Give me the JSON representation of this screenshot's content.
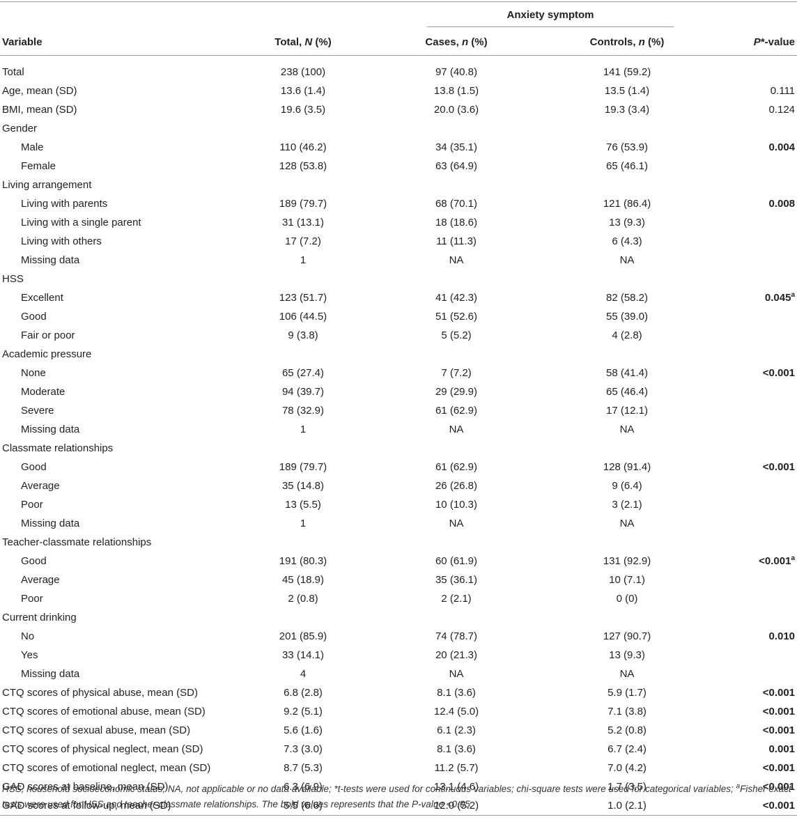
{
  "header": {
    "group": "Anxiety symptom",
    "variable": "Variable",
    "total": [
      "Total, ",
      "N",
      " (%)"
    ],
    "cases": [
      "Cases, ",
      "n",
      " (%)"
    ],
    "controls": [
      "Controls, ",
      "n",
      " (%)"
    ],
    "p": [
      "P",
      "*-value"
    ]
  },
  "rows": [
    {
      "cells": [
        "Total",
        "238 (100)",
        "97 (40.8)",
        "141 (59.2)"
      ]
    },
    {
      "cells": [
        "Age, mean (SD)",
        "13.6 (1.4)",
        "13.8 (1.5)",
        "13.5 (1.4)",
        "0.111"
      ]
    },
    {
      "cells": [
        "BMI, mean (SD)",
        "19.6 (3.5)",
        "20.0 (3.6)",
        "19.3 (3.4)",
        "0.124"
      ]
    },
    {
      "cells": [
        "Gender"
      ]
    },
    {
      "cells": [
        "Male",
        "110 (46.2)",
        "34 (35.1)",
        "76 (53.9)",
        "0.004"
      ],
      "indent": true,
      "bold": true
    },
    {
      "cells": [
        "Female",
        "128 (53.8)",
        "63 (64.9)",
        "65 (46.1)"
      ],
      "indent": true
    },
    {
      "cells": [
        "Living arrangement"
      ]
    },
    {
      "cells": [
        "Living with parents",
        "189 (79.7)",
        "68 (70.1)",
        "121 (86.4)",
        "0.008"
      ],
      "indent": true,
      "bold": true
    },
    {
      "cells": [
        "Living with a single parent",
        "31 (13.1)",
        "18 (18.6)",
        "13 (9.3)"
      ],
      "indent": true
    },
    {
      "cells": [
        "Living with others",
        "17 (7.2)",
        "11 (11.3)",
        "6 (4.3)"
      ],
      "indent": true
    },
    {
      "cells": [
        "Missing data",
        "1",
        "NA",
        "NA"
      ],
      "indent": true
    },
    {
      "cells": [
        "HSS"
      ]
    },
    {
      "cells": [
        "Excellent",
        "123 (51.7)",
        "41 (42.3)",
        "82 (58.2)",
        "0.045"
      ],
      "indent": true,
      "bold": true,
      "sup": "a"
    },
    {
      "cells": [
        "Good",
        "106 (44.5)",
        "51 (52.6)",
        "55 (39.0)"
      ],
      "indent": true
    },
    {
      "cells": [
        "Fair or poor",
        "9 (3.8)",
        "5 (5.2)",
        "4 (2.8)"
      ],
      "indent": true
    },
    {
      "cells": [
        "Academic pressure"
      ]
    },
    {
      "cells": [
        "None",
        "65 (27.4)",
        "7 (7.2)",
        "58 (41.4)",
        "<0.001"
      ],
      "indent": true,
      "bold": true
    },
    {
      "cells": [
        "Moderate",
        "94 (39.7)",
        "29 (29.9)",
        "65 (46.4)"
      ],
      "indent": true
    },
    {
      "cells": [
        "Severe",
        "78 (32.9)",
        "61 (62.9)",
        "17 (12.1)"
      ],
      "indent": true
    },
    {
      "cells": [
        "Missing data",
        "1",
        "NA",
        "NA"
      ],
      "indent": true
    },
    {
      "cells": [
        "Classmate relationships"
      ]
    },
    {
      "cells": [
        "Good",
        "189 (79.7)",
        "61 (62.9)",
        "128 (91.4)",
        "<0.001"
      ],
      "indent": true,
      "bold": true
    },
    {
      "cells": [
        "Average",
        "35 (14.8)",
        "26 (26.8)",
        "9 (6.4)"
      ],
      "indent": true
    },
    {
      "cells": [
        "Poor",
        "13 (5.5)",
        "10 (10.3)",
        "3 (2.1)"
      ],
      "indent": true
    },
    {
      "cells": [
        "Missing data",
        "1",
        "NA",
        "NA"
      ],
      "indent": true
    },
    {
      "cells": [
        "Teacher-classmate relationships"
      ]
    },
    {
      "cells": [
        "Good",
        "191 (80.3)",
        "60 (61.9)",
        "131 (92.9)",
        "<0.001"
      ],
      "indent": true,
      "bold": true,
      "sup": "a"
    },
    {
      "cells": [
        "Average",
        "45 (18.9)",
        "35 (36.1)",
        "10 (7.1)"
      ],
      "indent": true
    },
    {
      "cells": [
        "Poor",
        "2 (0.8)",
        "2 (2.1)",
        "0 (0)"
      ],
      "indent": true
    },
    {
      "cells": [
        "Current drinking"
      ]
    },
    {
      "cells": [
        "No",
        "201 (85.9)",
        "74 (78.7)",
        "127 (90.7)",
        "0.010"
      ],
      "indent": true,
      "bold": true
    },
    {
      "cells": [
        "Yes",
        "33 (14.1)",
        "20 (21.3)",
        "13 (9.3)"
      ],
      "indent": true
    },
    {
      "cells": [
        "Missing data",
        "4",
        "NA",
        "NA"
      ],
      "indent": true
    },
    {
      "cells": [
        "CTQ scores of physical abuse, mean (SD)",
        "6.8 (2.8)",
        "8.1 (3.6)",
        "5.9 (1.7)",
        "<0.001"
      ],
      "bold": true
    },
    {
      "cells": [
        "CTQ scores of emotional abuse, mean (SD)",
        "9.2 (5.1)",
        "12.4 (5.0)",
        "7.1 (3.8)",
        "<0.001"
      ],
      "bold": true
    },
    {
      "cells": [
        "CTQ scores of sexual abuse, mean (SD)",
        "5.6 (1.6)",
        "6.1 (2.3)",
        "5.2 (0.8)",
        "<0.001"
      ],
      "bold": true
    },
    {
      "cells": [
        "CTQ scores of physical neglect, mean (SD)",
        "7.3 (3.0)",
        "8.1 (3.6)",
        "6.7 (2.4)",
        "0.001"
      ],
      "bold": true
    },
    {
      "cells": [
        "CTQ scores of emotional neglect, mean (SD)",
        "8.7 (5.3)",
        "11.2 (5.7)",
        "7.0 (4.2)",
        "<0.001"
      ],
      "bold": true
    },
    {
      "cells": [
        "GAD scores at baseline, mean (SD)",
        "6.3 (6.9)",
        "13.1 (4.6)",
        "1.7 (3.5)",
        "<0.001"
      ],
      "bold": true
    },
    {
      "cells": [
        "GAD scores at follow-up, mean (SD)",
        "5.5 (6.6)",
        "12.0 (5.2)",
        "1.0 (2.1)",
        "<0.001"
      ],
      "bold": true
    }
  ],
  "footnote": [
    "HSS, household socioeconomic status; NA, not applicable or no data available; *t-tests were used for continuous variables; chi-square tests were used for categorical variables; ",
    "a",
    "Fisher exact tests were used for HSS and teacher-classmate relationships. The bold values represents that the P-value <0.05."
  ]
}
